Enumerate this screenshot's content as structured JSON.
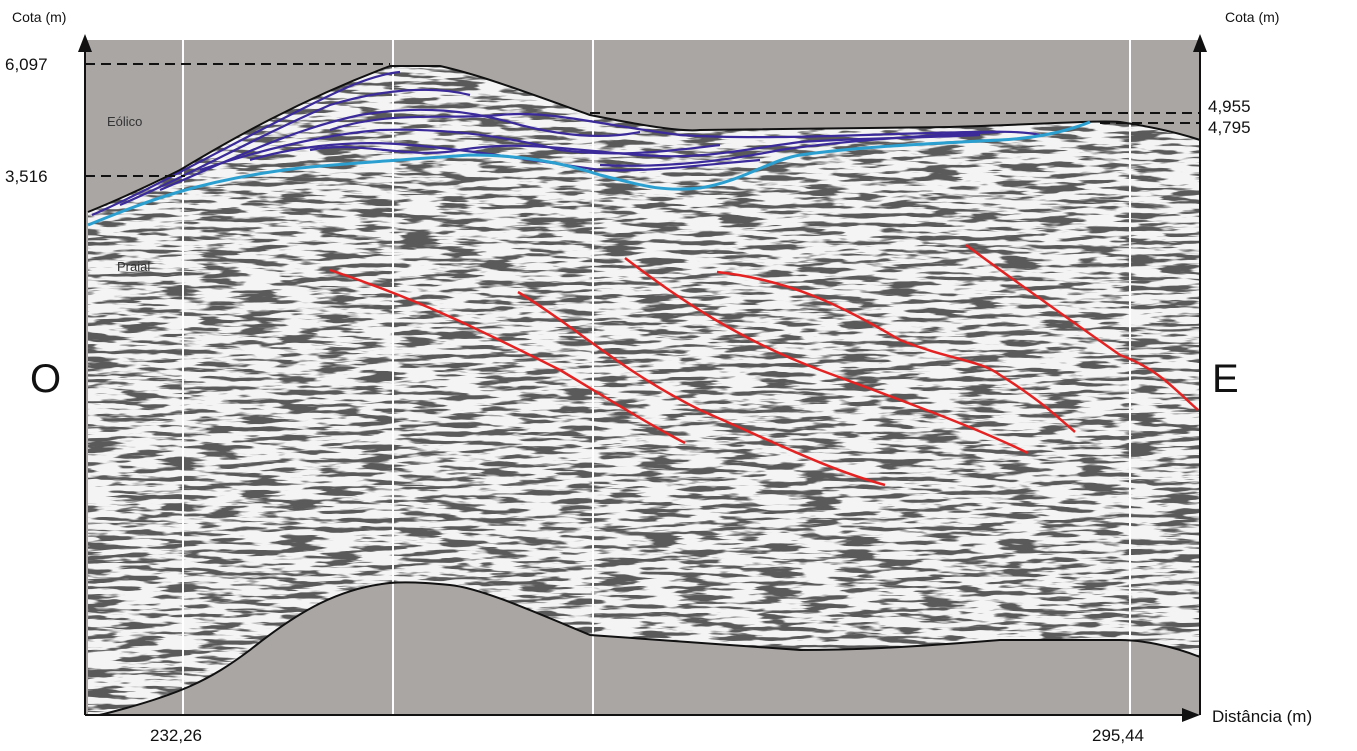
{
  "axes": {
    "left_label": "Cota (m)",
    "right_label": "Cota (m)",
    "bottom_label": "Distância (m)"
  },
  "orientation": {
    "west": "O",
    "east": "E"
  },
  "units": {
    "aeolian": "Eólico",
    "beach": "Praial"
  },
  "elevations": {
    "left_top": "6,097",
    "left_base": "3,516",
    "right_top": "4,955",
    "right_base": "4,795"
  },
  "distances": {
    "start": "232,26",
    "end": "295,44"
  }
}
